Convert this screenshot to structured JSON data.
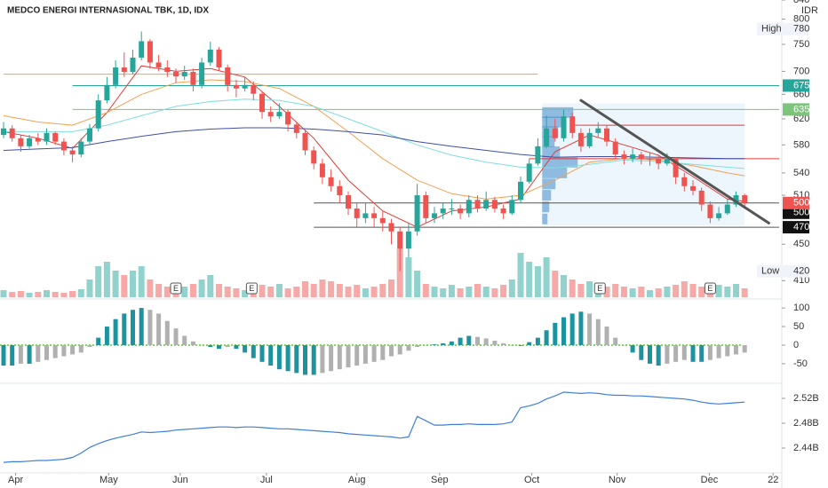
{
  "chart_data": {
    "type": "candlestick",
    "title": "MEDCO ENERGI INTERNASIONAL TBK, 1D, IDX",
    "currency": "IDR",
    "log": true,
    "grid": false,
    "ylim": [
      393,
      840
    ],
    "yticks": [
      410,
      450,
      510,
      540,
      580,
      620,
      660,
      700,
      750,
      800,
      840
    ],
    "xticks": [
      {
        "value": 1.4,
        "label": "Apr"
      },
      {
        "value": 12.2,
        "label": "May"
      },
      {
        "value": 20.5,
        "label": "Jun"
      },
      {
        "value": 30.5,
        "label": "Jul"
      },
      {
        "value": 41,
        "label": "Aug"
      },
      {
        "value": 50.6,
        "label": "Sep"
      },
      {
        "value": 61.3,
        "label": "Oct"
      },
      {
        "value": 71.2,
        "label": "Nov"
      },
      {
        "value": 81.9,
        "label": "Dec"
      },
      {
        "value": 89.3,
        "label": "22"
      }
    ],
    "up_color": "#26a69a",
    "down_color": "#ef5350",
    "candles": [
      [
        595,
        615,
        590,
        605
      ],
      [
        605,
        610,
        585,
        590
      ],
      [
        590,
        595,
        570,
        578
      ],
      [
        578,
        595,
        575,
        590
      ],
      [
        590,
        598,
        580,
        585
      ],
      [
        585,
        605,
        580,
        598
      ],
      [
        598,
        600,
        580,
        585
      ],
      [
        585,
        590,
        565,
        572
      ],
      [
        572,
        578,
        555,
        566
      ],
      [
        566,
        590,
        562,
        585
      ],
      [
        585,
        612,
        580,
        605
      ],
      [
        605,
        660,
        600,
        650
      ],
      [
        650,
        690,
        645,
        676
      ],
      [
        676,
        720,
        670,
        707
      ],
      [
        707,
        735,
        690,
        699
      ],
      [
        699,
        740,
        695,
        725
      ],
      [
        725,
        775,
        720,
        756
      ],
      [
        756,
        760,
        705,
        716
      ],
      [
        716,
        730,
        700,
        707
      ],
      [
        707,
        720,
        690,
        699
      ],
      [
        699,
        705,
        680,
        691
      ],
      [
        691,
        710,
        685,
        699
      ],
      [
        699,
        705,
        665,
        676
      ],
      [
        676,
        725,
        670,
        716
      ],
      [
        716,
        755,
        710,
        740
      ],
      [
        740,
        745,
        700,
        707
      ],
      [
        707,
        712,
        665,
        676
      ],
      [
        676,
        685,
        655,
        670
      ],
      [
        670,
        690,
        665,
        676
      ],
      [
        676,
        682,
        650,
        661
      ],
      [
        661,
        665,
        620,
        631
      ],
      [
        631,
        640,
        615,
        624
      ],
      [
        624,
        645,
        620,
        631
      ],
      [
        631,
        635,
        600,
        611
      ],
      [
        611,
        615,
        590,
        598
      ],
      [
        598,
        602,
        565,
        572
      ],
      [
        572,
        578,
        545,
        553
      ],
      [
        553,
        560,
        525,
        534
      ],
      [
        534,
        545,
        515,
        522
      ],
      [
        522,
        530,
        500,
        510
      ],
      [
        510,
        515,
        485,
        493
      ],
      [
        493,
        500,
        470,
        481
      ],
      [
        481,
        500,
        475,
        487
      ],
      [
        487,
        495,
        470,
        481
      ],
      [
        481,
        490,
        465,
        475
      ],
      [
        475,
        480,
        450,
        465
      ],
      [
        465,
        470,
        420,
        445
      ],
      [
        445,
        475,
        435,
        465
      ],
      [
        465,
        525,
        460,
        510
      ],
      [
        510,
        515,
        475,
        481
      ],
      [
        481,
        495,
        475,
        487
      ],
      [
        487,
        500,
        480,
        493
      ],
      [
        493,
        505,
        485,
        493
      ],
      [
        493,
        498,
        480,
        487
      ],
      [
        487,
        510,
        482,
        504
      ],
      [
        504,
        510,
        488,
        493
      ],
      [
        493,
        515,
        490,
        504
      ],
      [
        504,
        508,
        488,
        493
      ],
      [
        493,
        498,
        480,
        487
      ],
      [
        487,
        510,
        485,
        504
      ],
      [
        504,
        535,
        500,
        528
      ],
      [
        528,
        560,
        525,
        553
      ],
      [
        553,
        590,
        550,
        578
      ],
      [
        578,
        625,
        575,
        605
      ],
      [
        605,
        620,
        585,
        590
      ],
      [
        590,
        635,
        585,
        624
      ],
      [
        624,
        630,
        590,
        598
      ],
      [
        598,
        605,
        570,
        578
      ],
      [
        578,
        605,
        575,
        598
      ],
      [
        598,
        615,
        592,
        605
      ],
      [
        605,
        610,
        578,
        585
      ],
      [
        585,
        590,
        560,
        566
      ],
      [
        566,
        572,
        552,
        560
      ],
      [
        560,
        575,
        555,
        566
      ],
      [
        566,
        570,
        552,
        560
      ],
      [
        560,
        568,
        550,
        560
      ],
      [
        560,
        565,
        545,
        553
      ],
      [
        553,
        568,
        550,
        560
      ],
      [
        560,
        562,
        525,
        534
      ],
      [
        534,
        540,
        515,
        522
      ],
      [
        522,
        530,
        510,
        516
      ],
      [
        516,
        520,
        490,
        498
      ],
      [
        498,
        502,
        475,
        481
      ],
      [
        481,
        495,
        478,
        487
      ],
      [
        487,
        505,
        485,
        498
      ],
      [
        498,
        515,
        495,
        510
      ],
      [
        510,
        512,
        495,
        500
      ]
    ],
    "volume_lim": [
      0,
      100
    ],
    "volume": [
      8,
      6,
      7,
      5,
      6,
      8,
      6,
      5,
      7,
      9,
      20,
      35,
      40,
      30,
      25,
      30,
      35,
      20,
      15,
      12,
      10,
      12,
      15,
      20,
      25,
      15,
      12,
      10,
      8,
      10,
      14,
      12,
      15,
      10,
      12,
      18,
      15,
      20,
      18,
      15,
      12,
      14,
      10,
      12,
      15,
      20,
      55,
      45,
      30,
      15,
      12,
      10,
      14,
      10,
      12,
      15,
      12,
      10,
      14,
      20,
      50,
      40,
      35,
      45,
      30,
      25,
      20,
      15,
      18,
      14,
      12,
      15,
      12,
      10,
      12,
      8,
      10,
      12,
      14,
      18,
      15,
      12,
      10,
      14,
      12,
      15,
      10
    ],
    "ma_index": [
      0,
      4,
      8,
      12,
      16,
      20,
      24,
      28,
      32,
      36,
      40,
      44,
      48,
      52,
      56,
      60,
      64,
      68,
      72,
      76,
      80,
      84,
      86
    ],
    "moving_averages": [
      {
        "color": "#e53935",
        "values": [
          600,
          590,
          575,
          630,
          710,
          700,
          705,
          690,
          640,
          590,
          530,
          490,
          470,
          490,
          495,
          505,
          570,
          595,
          580,
          565,
          535,
          505,
          502
        ]
      },
      {
        "color": "#f5a050",
        "values": [
          625,
          615,
          610,
          630,
          660,
          680,
          685,
          682,
          670,
          640,
          600,
          560,
          530,
          512,
          505,
          510,
          530,
          555,
          560,
          558,
          550,
          540,
          536
        ]
      },
      {
        "color": "#7fdede",
        "values": [
          600,
          600,
          600,
          610,
          625,
          640,
          648,
          652,
          650,
          640,
          620,
          600,
          580,
          565,
          555,
          548,
          547,
          552,
          558,
          556,
          552,
          548,
          546
        ]
      },
      {
        "color": "#3f4fa8",
        "values": [
          572,
          574,
          576,
          585,
          593,
          600,
          604,
          606,
          606,
          604,
          600,
          595,
          585,
          578,
          572,
          566,
          562,
          563,
          563,
          562,
          561,
          560,
          560
        ]
      }
    ],
    "levels": [
      {
        "value": 695,
        "color": "#f5a623",
        "from": 0,
        "to": 62
      },
      {
        "value": 675,
        "color": "#26a69a",
        "from": 8,
        "to": 90,
        "badge": true
      },
      {
        "value": 635,
        "color": "#7cc47a",
        "from": 8,
        "to": 90,
        "badge": true
      },
      {
        "value": 610,
        "color": "#e53935",
        "from": 66,
        "to": 86
      },
      {
        "value": 560,
        "color": "#e53935",
        "from": 61,
        "to": 90
      },
      {
        "value": 500,
        "color": "#555555",
        "from": 36,
        "to": 90,
        "badge": true
      },
      {
        "value": 470,
        "color": "#555555",
        "from": 36,
        "to": 90,
        "badge": true
      }
    ],
    "high": {
      "label": "High",
      "value": 780
    },
    "low": {
      "label": "Low",
      "value": 420
    },
    "trendline": {
      "x": [
        67,
        88.8
      ],
      "values": [
        650,
        475
      ],
      "color": "#555555"
    },
    "earnings": [
      {
        "index": 20,
        "label": "E"
      },
      {
        "index": 28.8,
        "label": "E"
      },
      {
        "index": 69.2,
        "label": "E"
      },
      {
        "index": 82,
        "label": "E"
      }
    ],
    "volume_profile": {
      "start": 62.5,
      "end": 86,
      "range": [
        472,
        645
      ],
      "color": "#2f7fc1",
      "prices": [
        630,
        615,
        600,
        585,
        570,
        555,
        540,
        525,
        510,
        495,
        480
      ],
      "values": [
        35,
        25,
        18,
        14,
        20,
        40,
        28,
        15,
        10,
        8,
        6
      ]
    },
    "macd": {
      "ylim": [
        -98,
        117
      ],
      "yticks": [
        100,
        50,
        0,
        -50
      ],
      "rise_color": "#1e93a0",
      "fall_color": "#b0b0b0",
      "values": [
        -55,
        -55,
        -50,
        -50,
        -45,
        -40,
        -35,
        -30,
        -25,
        -20,
        -5,
        20,
        50,
        70,
        85,
        95,
        100,
        95,
        85,
        65,
        45,
        25,
        10,
        0,
        -5,
        -10,
        -5,
        -10,
        -20,
        -35,
        -45,
        -55,
        -65,
        -70,
        -75,
        -80,
        -80,
        -75,
        -70,
        -65,
        -60,
        -55,
        -50,
        -45,
        -40,
        -30,
        -25,
        -15,
        -5,
        0,
        2,
        5,
        10,
        20,
        25,
        22,
        18,
        12,
        5,
        0,
        -2,
        8,
        20,
        40,
        60,
        75,
        85,
        90,
        85,
        70,
        50,
        20,
        0,
        -20,
        -40,
        -50,
        -55,
        -50,
        -45,
        -40,
        -45,
        -45,
        -40,
        -35,
        -30,
        -25,
        -20
      ]
    },
    "obv": {
      "ylim": [
        2.4,
        2.54
      ],
      "color": "#3d7fd6",
      "yticks": [
        {
          "value": 2.52,
          "label": "2.52B"
        },
        {
          "value": 2.48,
          "label": "2.48B"
        },
        {
          "value": 2.44,
          "label": "2.44B"
        }
      ],
      "values": [
        2.417,
        2.418,
        2.418,
        2.419,
        2.42,
        2.42,
        2.421,
        2.422,
        2.425,
        2.432,
        2.441,
        2.447,
        2.452,
        2.456,
        2.459,
        2.462,
        2.466,
        2.465,
        2.466,
        2.467,
        2.469,
        2.47,
        2.471,
        2.472,
        2.473,
        2.474,
        2.474,
        2.473,
        2.474,
        2.474,
        2.473,
        2.472,
        2.471,
        2.471,
        2.47,
        2.469,
        2.468,
        2.467,
        2.466,
        2.465,
        2.463,
        2.462,
        2.461,
        2.46,
        2.459,
        2.458,
        2.456,
        2.458,
        2.491,
        2.484,
        2.477,
        2.477,
        2.478,
        2.478,
        2.479,
        2.478,
        2.478,
        2.478,
        2.479,
        2.482,
        2.505,
        2.508,
        2.512,
        2.519,
        2.524,
        2.53,
        2.529,
        2.528,
        2.529,
        2.528,
        2.526,
        2.525,
        2.525,
        2.524,
        2.524,
        2.523,
        2.522,
        2.521,
        2.52,
        2.519,
        2.517,
        2.514,
        2.512,
        2.511,
        2.512,
        2.513,
        2.514
      ]
    }
  }
}
